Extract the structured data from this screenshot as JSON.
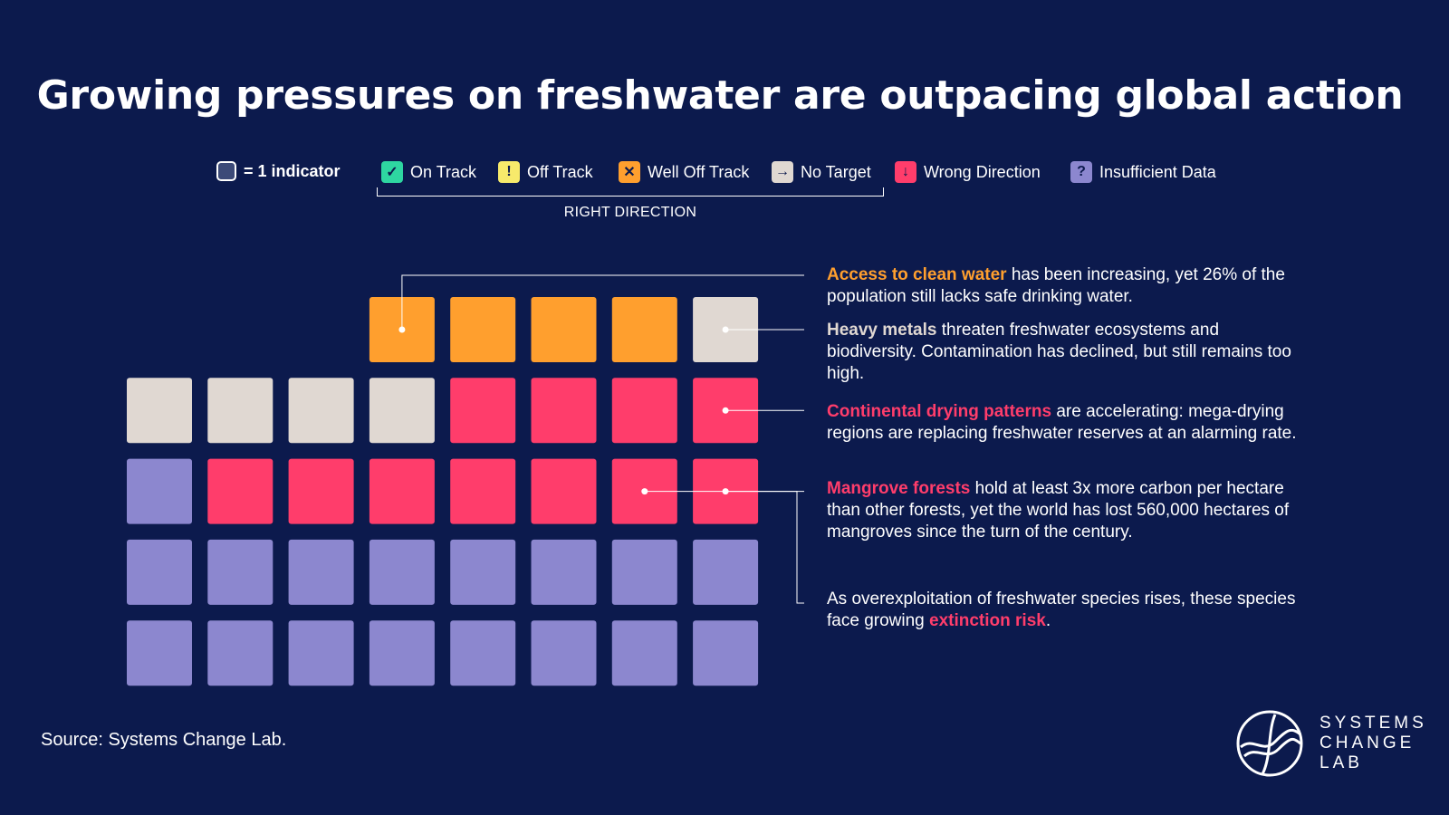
{
  "title": "Growing pressures on freshwater are outpacing global action",
  "legend": {
    "unit_label": "= 1 indicator",
    "items": [
      {
        "label": "On Track",
        "icon": "check-icon",
        "glyph": "✓",
        "color": "#2ed6a1",
        "glyph_color": "#0c1a4d"
      },
      {
        "label": "Off Track",
        "icon": "exclamation-icon",
        "glyph": "!",
        "color": "#f7ea6b",
        "glyph_color": "#0c1a4d"
      },
      {
        "label": "Well Off Track",
        "icon": "x-icon",
        "glyph": "✕",
        "color": "#ff9f2e",
        "glyph_color": "#0c1a4d"
      },
      {
        "label": "No Target",
        "icon": "arrow-right-icon",
        "glyph": "→",
        "color": "#e0d8d2",
        "glyph_color": "#0c1a4d"
      },
      {
        "label": "Wrong Direction",
        "icon": "arrow-down-icon",
        "glyph": "↓",
        "color": "#ff3d6b",
        "glyph_color": "#0c1a4d"
      },
      {
        "label": "Insufficient Data",
        "icon": "question-icon",
        "glyph": "?",
        "color": "#8c87cf",
        "glyph_color": "#0c1a4d"
      }
    ],
    "bracket_label": "RIGHT DIRECTION"
  },
  "chart_data": {
    "type": "waffle",
    "unit": "indicator",
    "categories": [
      "On Track",
      "Off Track",
      "Well Off Track",
      "No Target",
      "Wrong Direction",
      "Insufficient Data"
    ],
    "counts": [
      0,
      0,
      4,
      5,
      11,
      17
    ],
    "colors": {
      "Well Off Track": "#ff9f2e",
      "No Target": "#e0d8d2",
      "Wrong Direction": "#ff3d6b",
      "Insufficient Data": "#8c87cf"
    },
    "rows": [
      [
        "",
        "",
        "",
        "Well Off Track",
        "Well Off Track",
        "Well Off Track",
        "Well Off Track",
        "No Target"
      ],
      [
        "No Target",
        "No Target",
        "No Target",
        "No Target",
        "Wrong Direction",
        "Wrong Direction",
        "Wrong Direction",
        "Wrong Direction"
      ],
      [
        "Insufficient Data",
        "Wrong Direction",
        "Wrong Direction",
        "Wrong Direction",
        "Wrong Direction",
        "Wrong Direction",
        "Wrong Direction",
        "Wrong Direction"
      ],
      [
        "Insufficient Data",
        "Insufficient Data",
        "Insufficient Data",
        "Insufficient Data",
        "Insufficient Data",
        "Insufficient Data",
        "Insufficient Data",
        "Insufficient Data"
      ],
      [
        "Insufficient Data",
        "Insufficient Data",
        "Insufficient Data",
        "Insufficient Data",
        "Insufficient Data",
        "Insufficient Data",
        "Insufficient Data",
        "Insufficient Data"
      ]
    ],
    "annotations": [
      {
        "highlight": "Access to clean water",
        "highlight_color": "#ff9f2e",
        "before": "",
        "after": " has been increasing, yet 26% of the population still lacks safe drinking water.",
        "cell": [
          0,
          3
        ]
      },
      {
        "highlight": "Heavy metals",
        "highlight_color": "#e0d8d2",
        "before": "",
        "after": " threaten freshwater ecosystems and biodiversity. Contamination has declined, but still remains too high.",
        "cell": [
          0,
          7
        ]
      },
      {
        "highlight": "Continental drying patterns",
        "highlight_color": "#ff3d6b",
        "before": "",
        "after": " are accelerating: mega-drying regions are replacing freshwater reserves at an alarming rate.",
        "cell": [
          1,
          7
        ]
      },
      {
        "highlight": "Mangrove forests",
        "highlight_color": "#ff3d6b",
        "before": "",
        "after": " hold at least 3x more carbon per hectare than other forests, yet the world has lost 560,000 hectares of mangroves since the turn of the century.",
        "cell": [
          2,
          7
        ]
      },
      {
        "highlight": "extinction risk",
        "highlight_color": "#ff3d6b",
        "before": "As overexploitation of freshwater species rises, these species face growing ",
        "after": ".",
        "cell": [
          2,
          6
        ]
      }
    ]
  },
  "source": "Source: Systems Change Lab.",
  "logo": {
    "line1": "SYSTEMS",
    "line2": "CHANGE",
    "line3": "LAB"
  }
}
